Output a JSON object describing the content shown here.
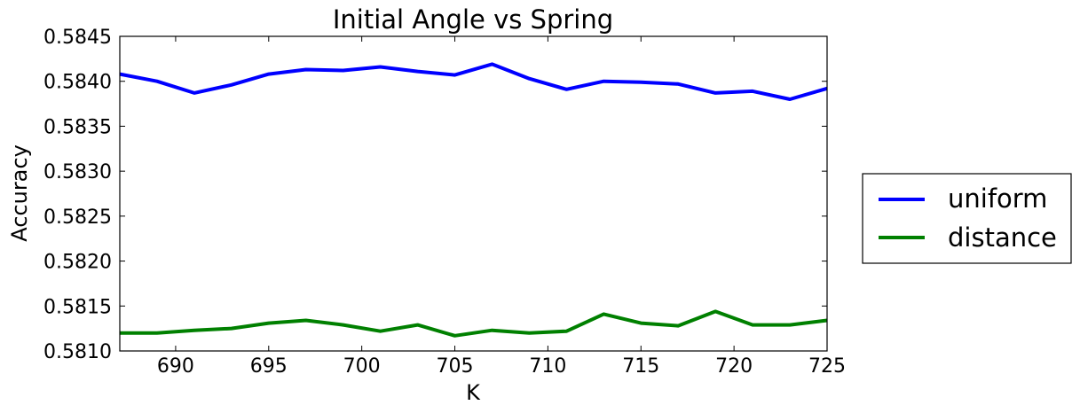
{
  "chart_data": {
    "type": "line",
    "title": "Initial Angle vs Spring",
    "xlabel": "K",
    "ylabel": "Accuracy",
    "xlim": [
      687,
      725
    ],
    "ylim": [
      0.581,
      0.5845
    ],
    "x_ticks": [
      690,
      695,
      700,
      705,
      710,
      715,
      720,
      725
    ],
    "y_ticks": [
      0.581,
      0.5815,
      0.582,
      0.5825,
      0.583,
      0.5835,
      0.584,
      0.5845
    ],
    "x_tick_labels": [
      "690",
      "695",
      "700",
      "705",
      "710",
      "715",
      "720",
      "725"
    ],
    "y_tick_labels": [
      "0.5810",
      "0.5815",
      "0.5820",
      "0.5825",
      "0.5830",
      "0.5835",
      "0.5840",
      "0.5845"
    ],
    "grid": false,
    "legend_position": "outside-right",
    "x": [
      687,
      689,
      691,
      693,
      695,
      697,
      699,
      701,
      703,
      705,
      707,
      709,
      711,
      713,
      715,
      717,
      719,
      721,
      723,
      725
    ],
    "series": [
      {
        "name": "uniform",
        "color": "#0000ff",
        "values": [
          0.58408,
          0.584,
          0.58387,
          0.58396,
          0.58408,
          0.58413,
          0.58412,
          0.58416,
          0.58411,
          0.58407,
          0.58419,
          0.58403,
          0.58391,
          0.584,
          0.58399,
          0.58397,
          0.58387,
          0.58389,
          0.5838,
          0.58392
        ]
      },
      {
        "name": "distance",
        "color": "#008000",
        "values": [
          0.5812,
          0.5812,
          0.58123,
          0.58125,
          0.58131,
          0.58134,
          0.58129,
          0.58122,
          0.58129,
          0.58117,
          0.58123,
          0.5812,
          0.58122,
          0.58141,
          0.58131,
          0.58128,
          0.58144,
          0.58129,
          0.58129,
          0.58134
        ]
      }
    ]
  }
}
